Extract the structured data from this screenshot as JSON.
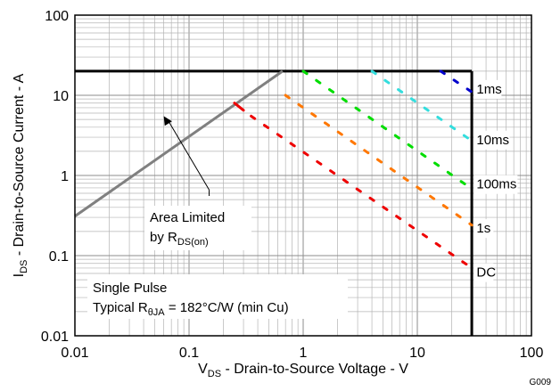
{
  "chart_data": {
    "type": "line",
    "x_scale": "log",
    "y_scale": "log",
    "xlim": [
      0.01,
      100
    ],
    "ylim": [
      0.01,
      100
    ],
    "x_ticks": [
      "0.01",
      "0.1",
      "1",
      "10",
      "100"
    ],
    "y_ticks": [
      "0.01",
      "0.1",
      "1",
      "10",
      "100"
    ],
    "xlabel": {
      "main": "V",
      "sub": "DS",
      "rest": " - Drain-to-Source Voltage - V"
    },
    "ylabel": {
      "main": "I",
      "sub": "DS",
      "rest": " - Drain-to-Source Current - A"
    },
    "grid": true,
    "figure_id": "G009",
    "limits": {
      "current_limit": {
        "y": 20,
        "x_range": [
          0.01,
          30
        ]
      },
      "voltage_limit": {
        "x": 30,
        "y_range": [
          0.01,
          20
        ]
      }
    },
    "rds_on_line": {
      "color": "#808080",
      "points": [
        [
          0.01,
          0.31
        ],
        [
          0.66,
          20
        ]
      ]
    },
    "series": [
      {
        "name": "1ms",
        "color": "#0000cc",
        "points": [
          [
            16,
            20
          ],
          [
            30,
            11
          ]
        ]
      },
      {
        "name": "10ms",
        "color": "#33dddd",
        "points": [
          [
            4,
            20
          ],
          [
            30,
            2.7
          ]
        ]
      },
      {
        "name": "100ms",
        "color": "#00dd00",
        "points": [
          [
            1,
            20
          ],
          [
            30,
            0.68
          ]
        ]
      },
      {
        "name": "1s",
        "color": "#ff7700",
        "points": [
          [
            0.7,
            10
          ],
          [
            30,
            0.24
          ]
        ]
      },
      {
        "name": "DC",
        "color": "#ee0000",
        "points": [
          [
            0.35,
            5.5
          ],
          [
            30,
            0.07
          ]
        ]
      }
    ],
    "extra_segments": [
      {
        "color": "#ee0000",
        "points": [
          [
            0.25,
            8
          ],
          [
            0.3,
            6.5
          ]
        ]
      }
    ],
    "series_labels": [
      {
        "text": "1ms",
        "x": 33,
        "y": 12
      },
      {
        "text": "10ms",
        "x": 33,
        "y": 2.8
      },
      {
        "text": "100ms",
        "x": 33,
        "y": 0.78
      },
      {
        "text": "1s",
        "x": 33,
        "y": 0.22
      },
      {
        "text": "DC",
        "x": 33,
        "y": 0.062
      }
    ],
    "annotations": {
      "area_limited": {
        "line1": "Area Limited",
        "line2_main": "by R",
        "line2_sub": "DS(on)",
        "arrow_from": [
          0.15,
          0.9
        ],
        "arrow_tip": [
          0.06,
          5.5
        ]
      },
      "pulse": {
        "line1": "Single Pulse",
        "line2_main": "Typical R",
        "line2_sub": "θJA",
        "line2_rest": " = 182°C/W (min Cu)"
      }
    }
  }
}
